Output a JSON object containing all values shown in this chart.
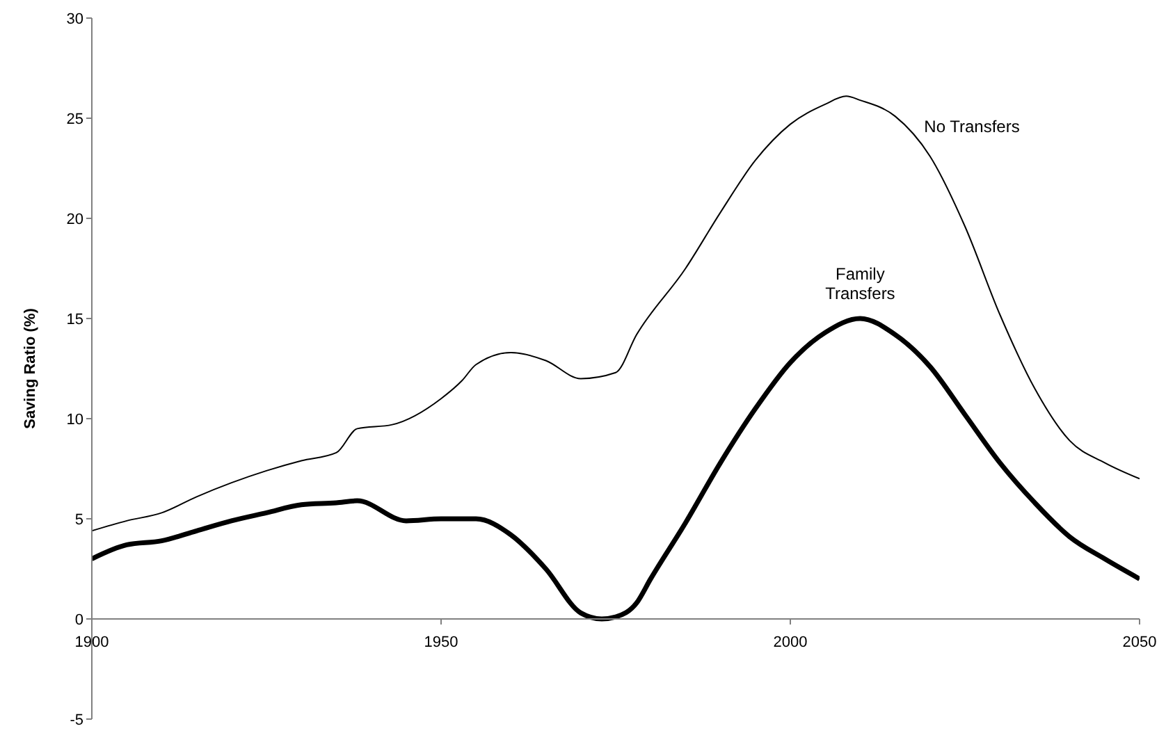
{
  "chart_data": {
    "type": "line",
    "ylabel": "Saving Ratio (%)",
    "xlim": [
      1900,
      2050
    ],
    "xticks": [
      1900,
      1950,
      2000,
      2050
    ],
    "ylim": [
      -5,
      30
    ],
    "yticks": [
      -5,
      0,
      5,
      10,
      15,
      20,
      25,
      30
    ],
    "grid": false,
    "legend": false,
    "marker": "none",
    "series": [
      {
        "name": "No Transfers",
        "color": "#000000",
        "x": [
          1900,
          1905,
          1910,
          1915,
          1920,
          1925,
          1930,
          1935,
          1938,
          1943,
          1950,
          1953,
          1955,
          1960,
          1965,
          1970,
          1975,
          1978,
          1985,
          1990,
          1995,
          2000,
          2005,
          2008,
          2010,
          2015,
          2020,
          2025,
          2030,
          2035,
          2040,
          2045,
          2050
        ],
        "values": [
          4.4,
          4.9,
          5.3,
          6.1,
          6.8,
          7.4,
          7.9,
          8.3,
          9.5,
          9.7,
          11.0,
          11.9,
          12.7,
          13.3,
          12.9,
          12.0,
          12.3,
          14.2,
          17.5,
          20.3,
          22.9,
          24.7,
          25.7,
          26.1,
          25.9,
          25.1,
          23.1,
          19.6,
          15.2,
          11.5,
          8.9,
          7.8,
          7.0
        ]
      },
      {
        "name": "Family Transfers",
        "color": "#000000",
        "x": [
          1900,
          1905,
          1910,
          1915,
          1920,
          1925,
          1930,
          1935,
          1938,
          1945,
          1950,
          1955,
          1960,
          1965,
          1970,
          1973,
          1975,
          1978,
          1980,
          1985,
          1990,
          1995,
          2000,
          2005,
          2010,
          2015,
          2020,
          2025,
          2030,
          2035,
          2040,
          2045,
          2050
        ],
        "values": [
          3.0,
          3.7,
          3.9,
          4.4,
          4.9,
          5.3,
          5.7,
          5.8,
          5.9,
          4.9,
          5.0,
          5.0,
          4.2,
          2.5,
          0.3,
          0.0,
          0.1,
          0.8,
          2.0,
          4.8,
          7.8,
          10.5,
          12.8,
          14.3,
          15.0,
          14.2,
          12.6,
          10.2,
          7.8,
          5.8,
          4.1,
          3.0,
          2.0
        ]
      }
    ]
  }
}
